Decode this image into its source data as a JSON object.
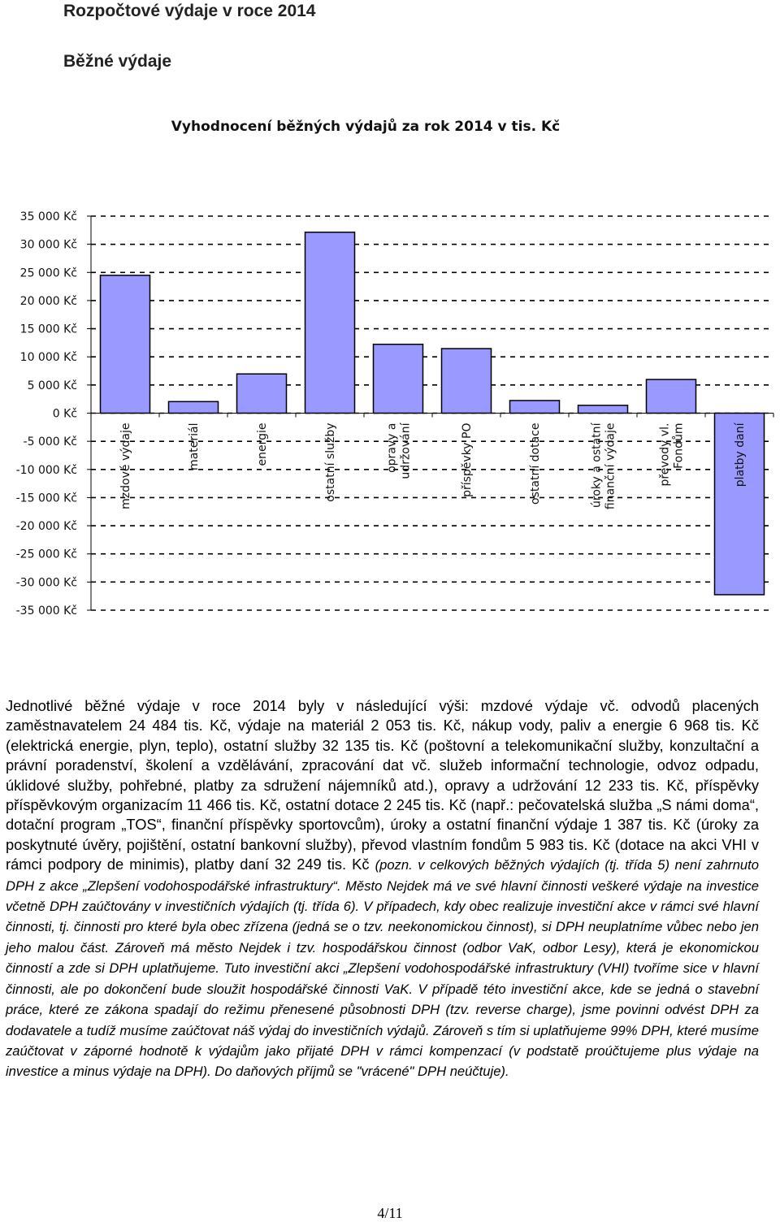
{
  "page": {
    "heading": "Rozpočtové výdaje v roce 2014",
    "subheading": "Běžné výdaje",
    "paragraph_main": "Jednotlivé běžné výdaje v roce 2014 byly v následující výši: mzdové výdaje vč. odvodů placených zaměstnavatelem 24 484 tis. Kč, výdaje na materiál 2 053 tis. Kč, nákup vody, paliv a energie 6 968 tis. Kč (elektrická energie, plyn, teplo), ostatní služby 32 135 tis. Kč (poštovní a telekomunikační služby, konzultační a právní poradenství, školení a vzdělávání, zpracování dat vč. služeb informační technologie, odvoz odpadu, úklidové služby, pohřebné, platby za sdružení nájemníků atd.), opravy a udržování 12 233 tis. Kč, příspěvky příspěvkovým organizacím 11 466 tis. Kč, ostatní dotace 2 245 tis. Kč (např.: pečovatelská služba „S námi doma“, dotační program „TOS“, finanční příspěvky sportovcům), úroky a ostatní finanční výdaje 1 387 tis. Kč (úroky za poskytnuté úvěry, pojištění, ostatní bankovní služby), převod vlastním fondům 5 983 tis. Kč (dotace na akci VHI v rámci podpory de minimis), platby daní 32 249 tis. Kč ",
    "paragraph_note": "(pozn. v celkových běžných výdajích (tj. třída 5) není zahrnuto DPH z akce „Zlepšení vodohospodářské infrastruktury“. Město Nejdek má ve své hlavní činnosti veškeré výdaje na investice včetně DPH zaúčtovány v investičních výdajích (tj. třída 6). V případech, kdy obec realizuje investiční akce v rámci své hlavní činnosti, tj. činnosti pro které byla obec zřízena (jedná se o tzv. neekonomickou činnost), si DPH neuplatníme vůbec nebo jen jeho malou část. Zároveň má město Nejdek i tzv. hospodářskou činnost (odbor VaK, odbor Lesy), která je ekonomickou činností a zde si DPH uplatňujeme. Tuto investiční akci „Zlepšení vodohospodářské infrastruktury (VHI) tvoříme sice v hlavní činnosti, ale po dokončení bude sloužit hospodářské činnosti VaK. V případě této investiční akce, kde se jedná o stavební práce, které ze zákona spadají do režimu přenesené působnosti DPH (tzv. reverse charge), jsme povinni odvést DPH za dodavatele a tudíž musíme zaúčtovat náš výdaj do investičních výdajů. Zároveň s tím si uplatňujeme 99% DPH, které musíme zaúčtovat v záporné hodnotě k výdajům jako přijaté DPH v rámci kompenzací (v podstatě proúčtujeme plus výdaje na investice a minus výdaje na DPH). Do daňových příjmů se \"vrácené\" DPH neúčtuje).",
    "page_number": "4/11"
  },
  "chart_data": {
    "type": "bar",
    "title": "Vyhodnocení běžných výdajů za rok 2014 v tis. Kč",
    "categories": [
      [
        "mzdové výdaje"
      ],
      [
        "materiál"
      ],
      [
        "energie"
      ],
      [
        "ostatní služby"
      ],
      [
        "opravy a",
        "udržování"
      ],
      [
        "příspěvky PO"
      ],
      [
        "ostatní dotace"
      ],
      [
        "úroky a ostatní",
        "finanční výdaje"
      ],
      [
        "převody vl.",
        "Fondům"
      ],
      [
        "platby daní"
      ]
    ],
    "values": [
      24484,
      2053,
      6968,
      32135,
      12233,
      11466,
      2245,
      1387,
      5983,
      -32249
    ],
    "ylim": [
      -35000,
      35000
    ],
    "ytick_step": 5000,
    "ytick_labels": [
      "35 000 Kč",
      "30 000 Kč",
      "25 000 Kč",
      "20 000 Kč",
      "15 000 Kč",
      "10 000 Kč",
      "5 000 Kč",
      "0 Kč",
      "-5 000 Kč",
      "-10 000 Kč",
      "-15 000 Kč",
      "-20 000 Kč",
      "-25 000 Kč",
      "-30 000 Kč",
      "-35 000 Kč"
    ],
    "grid": "dashed horizontal",
    "legend": "none",
    "bar_fill": "#9999ff",
    "bar_stroke": "#000000"
  }
}
